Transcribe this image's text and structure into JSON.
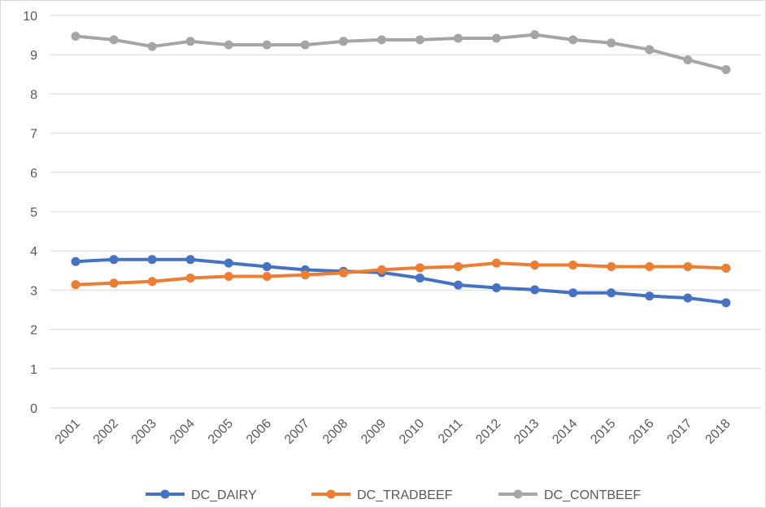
{
  "chart_data": {
    "type": "line",
    "title": "",
    "xlabel": "",
    "ylabel": "",
    "ylim": [
      0,
      10
    ],
    "yticks": [
      "0",
      "1",
      "2",
      "3",
      "4",
      "5",
      "6",
      "7",
      "8",
      "9",
      "10"
    ],
    "grid": true,
    "legend_position": "bottom",
    "categories": [
      "2001",
      "2002",
      "2003",
      "2004",
      "2005",
      "2006",
      "2007",
      "2008",
      "2009",
      "2010",
      "2011",
      "2012",
      "2013",
      "2014",
      "2015",
      "2016",
      "2017",
      "2018"
    ],
    "series": [
      {
        "name": "DC_DAIRY",
        "color": "#4472c4",
        "values": [
          3.73,
          3.78,
          3.78,
          3.78,
          3.69,
          3.6,
          3.52,
          3.48,
          3.45,
          3.31,
          3.13,
          3.06,
          3.01,
          2.93,
          2.93,
          2.85,
          2.8,
          2.68
        ]
      },
      {
        "name": "DC_TRADBEEF",
        "color": "#ed7d31",
        "values": [
          3.14,
          3.18,
          3.22,
          3.31,
          3.35,
          3.35,
          3.39,
          3.44,
          3.52,
          3.57,
          3.6,
          3.69,
          3.64,
          3.64,
          3.6,
          3.6,
          3.6,
          3.56
        ]
      },
      {
        "name": "DC_CONTBEEF",
        "color": "#a5a5a5",
        "values": [
          9.47,
          9.38,
          9.21,
          9.34,
          9.25,
          9.25,
          9.25,
          9.34,
          9.38,
          9.38,
          9.42,
          9.42,
          9.51,
          9.38,
          9.3,
          9.13,
          8.87,
          8.62
        ]
      }
    ]
  }
}
